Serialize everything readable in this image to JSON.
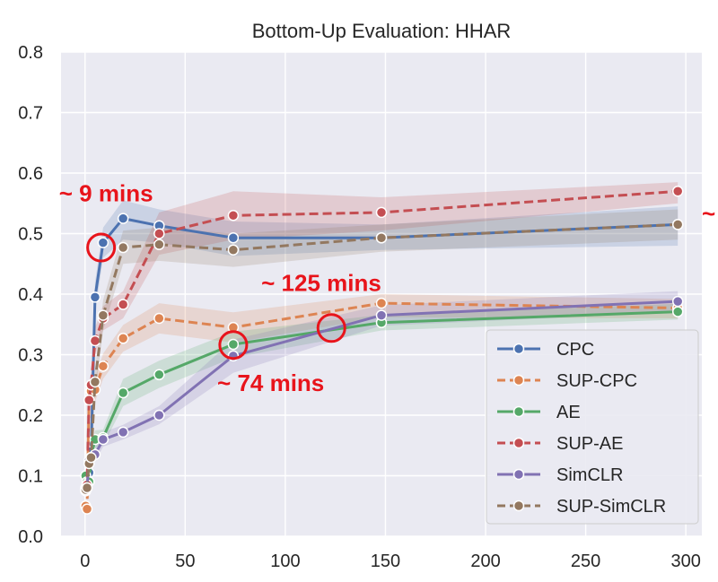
{
  "chart_data": {
    "type": "line",
    "title": "Bottom-Up Evaluation: HHAR",
    "xlabel": "",
    "ylabel": "",
    "xlim": [
      -12,
      308
    ],
    "ylim": [
      0,
      0.8
    ],
    "xticks": [
      0,
      50,
      100,
      150,
      200,
      250,
      300
    ],
    "yticks": [
      0.0,
      0.1,
      0.2,
      0.3,
      0.4,
      0.5,
      0.6,
      0.7,
      0.8
    ],
    "xtick_labels": [
      "0",
      "50",
      "100",
      "150",
      "200",
      "250",
      "300"
    ],
    "ytick_labels": [
      "0.0",
      "0.1",
      "0.2",
      "0.3",
      "0.4",
      "0.5",
      "0.6",
      "0.7",
      "0.8"
    ],
    "grid": true,
    "legend_position": "lower-right",
    "background": "#eaeaf2",
    "series": [
      {
        "name": "CPC",
        "color": "#4c72b0",
        "dashed": false,
        "x": [
          0.3,
          1,
          2,
          3,
          5,
          9,
          19,
          37,
          74,
          148,
          296
        ],
        "y": [
          0.08,
          0.095,
          0.105,
          0.14,
          0.395,
          0.485,
          0.525,
          0.513,
          0.493,
          0.493,
          0.515
        ],
        "lower": [
          0.07,
          0.085,
          0.095,
          0.125,
          0.37,
          0.46,
          0.49,
          0.485,
          0.463,
          0.473,
          0.48
        ],
        "upper": [
          0.09,
          0.105,
          0.115,
          0.155,
          0.42,
          0.51,
          0.555,
          0.54,
          0.52,
          0.515,
          0.545
        ]
      },
      {
        "name": "SUP-CPC",
        "color": "#dd8452",
        "dashed": true,
        "x": [
          0.3,
          1,
          2,
          3,
          5,
          9,
          19,
          37,
          74,
          148,
          296
        ],
        "y": [
          0.05,
          0.045,
          0.225,
          0.24,
          0.242,
          0.281,
          0.327,
          0.36,
          0.345,
          0.385,
          0.377
        ],
        "lower": [
          0.04,
          0.035,
          0.205,
          0.22,
          0.222,
          0.26,
          0.305,
          0.335,
          0.32,
          0.362,
          0.36
        ],
        "upper": [
          0.06,
          0.055,
          0.245,
          0.26,
          0.262,
          0.302,
          0.349,
          0.385,
          0.37,
          0.4,
          0.392
        ]
      },
      {
        "name": "AE",
        "color": "#55a868",
        "dashed": false,
        "x": [
          0.3,
          1,
          2,
          3,
          5,
          9,
          19,
          37,
          74,
          148,
          296
        ],
        "y": [
          0.1,
          0.09,
          0.09,
          0.13,
          0.16,
          0.163,
          0.237,
          0.267,
          0.317,
          0.353,
          0.371
        ],
        "lower": [
          0.09,
          0.08,
          0.08,
          0.115,
          0.145,
          0.15,
          0.215,
          0.245,
          0.295,
          0.34,
          0.358
        ],
        "upper": [
          0.11,
          0.1,
          0.1,
          0.145,
          0.175,
          0.176,
          0.26,
          0.29,
          0.338,
          0.366,
          0.384
        ]
      },
      {
        "name": "SUP-AE",
        "color": "#c44e52",
        "dashed": true,
        "x": [
          0.3,
          1,
          2,
          3,
          5,
          9,
          19,
          37,
          74,
          148,
          296
        ],
        "y": [
          0.075,
          0.085,
          0.225,
          0.25,
          0.323,
          0.36,
          0.383,
          0.5,
          0.53,
          0.535,
          0.57
        ],
        "lower": [
          0.065,
          0.075,
          0.205,
          0.23,
          0.3,
          0.34,
          0.36,
          0.465,
          0.49,
          0.505,
          0.55
        ],
        "upper": [
          0.085,
          0.095,
          0.245,
          0.27,
          0.345,
          0.38,
          0.405,
          0.535,
          0.57,
          0.56,
          0.585
        ]
      },
      {
        "name": "SimCLR",
        "color": "#8172b3",
        "dashed": false,
        "x": [
          0.3,
          1,
          2,
          3,
          5,
          9,
          19,
          37,
          74,
          148,
          296
        ],
        "y": [
          0.077,
          0.08,
          0.125,
          0.13,
          0.135,
          0.16,
          0.172,
          0.2,
          0.298,
          0.365,
          0.388
        ],
        "lower": [
          0.067,
          0.07,
          0.112,
          0.118,
          0.124,
          0.148,
          0.16,
          0.185,
          0.27,
          0.348,
          0.37
        ],
        "upper": [
          0.087,
          0.09,
          0.138,
          0.142,
          0.146,
          0.172,
          0.184,
          0.215,
          0.325,
          0.382,
          0.405
        ]
      },
      {
        "name": "SUP-SimCLR",
        "color": "#937860",
        "dashed": true,
        "x": [
          0.3,
          1,
          2,
          3,
          5,
          9,
          19,
          37,
          74,
          148,
          296
        ],
        "y": [
          0.077,
          0.08,
          0.12,
          0.13,
          0.255,
          0.365,
          0.477,
          0.482,
          0.473,
          0.493,
          0.515
        ],
        "lower": [
          0.067,
          0.07,
          0.11,
          0.118,
          0.235,
          0.34,
          0.45,
          0.455,
          0.445,
          0.47,
          0.49
        ],
        "upper": [
          0.087,
          0.09,
          0.13,
          0.142,
          0.275,
          0.39,
          0.505,
          0.51,
          0.5,
          0.515,
          0.54
        ]
      }
    ],
    "annotations": [
      {
        "text": "~ 9 mins",
        "color": "#e8141b",
        "label_x": -13,
        "label_y": 0.553,
        "circle_x": 8,
        "circle_y": 0.477
      },
      {
        "text": "~ 125 mins",
        "color": "#e8141b",
        "label_x": 88,
        "label_y": 0.405,
        "circle_x": 123,
        "circle_y": 0.344
      },
      {
        "text": "~ 74 mins",
        "color": "#e8141b",
        "label_x": 66,
        "label_y": 0.24,
        "circle_x": 74,
        "circle_y": 0.316
      },
      {
        "text": "~",
        "color": "#e8141b",
        "label_x": 308,
        "label_y": 0.52
      }
    ]
  }
}
